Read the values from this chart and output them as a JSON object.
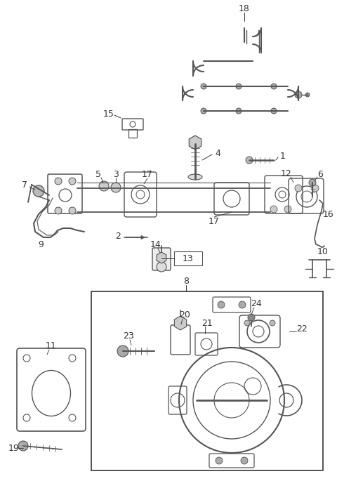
{
  "bg_color": "#ffffff",
  "line_color": "#555555",
  "dark_color": "#333333",
  "figsize": [
    4.8,
    6.85
  ],
  "dpi": 100
}
